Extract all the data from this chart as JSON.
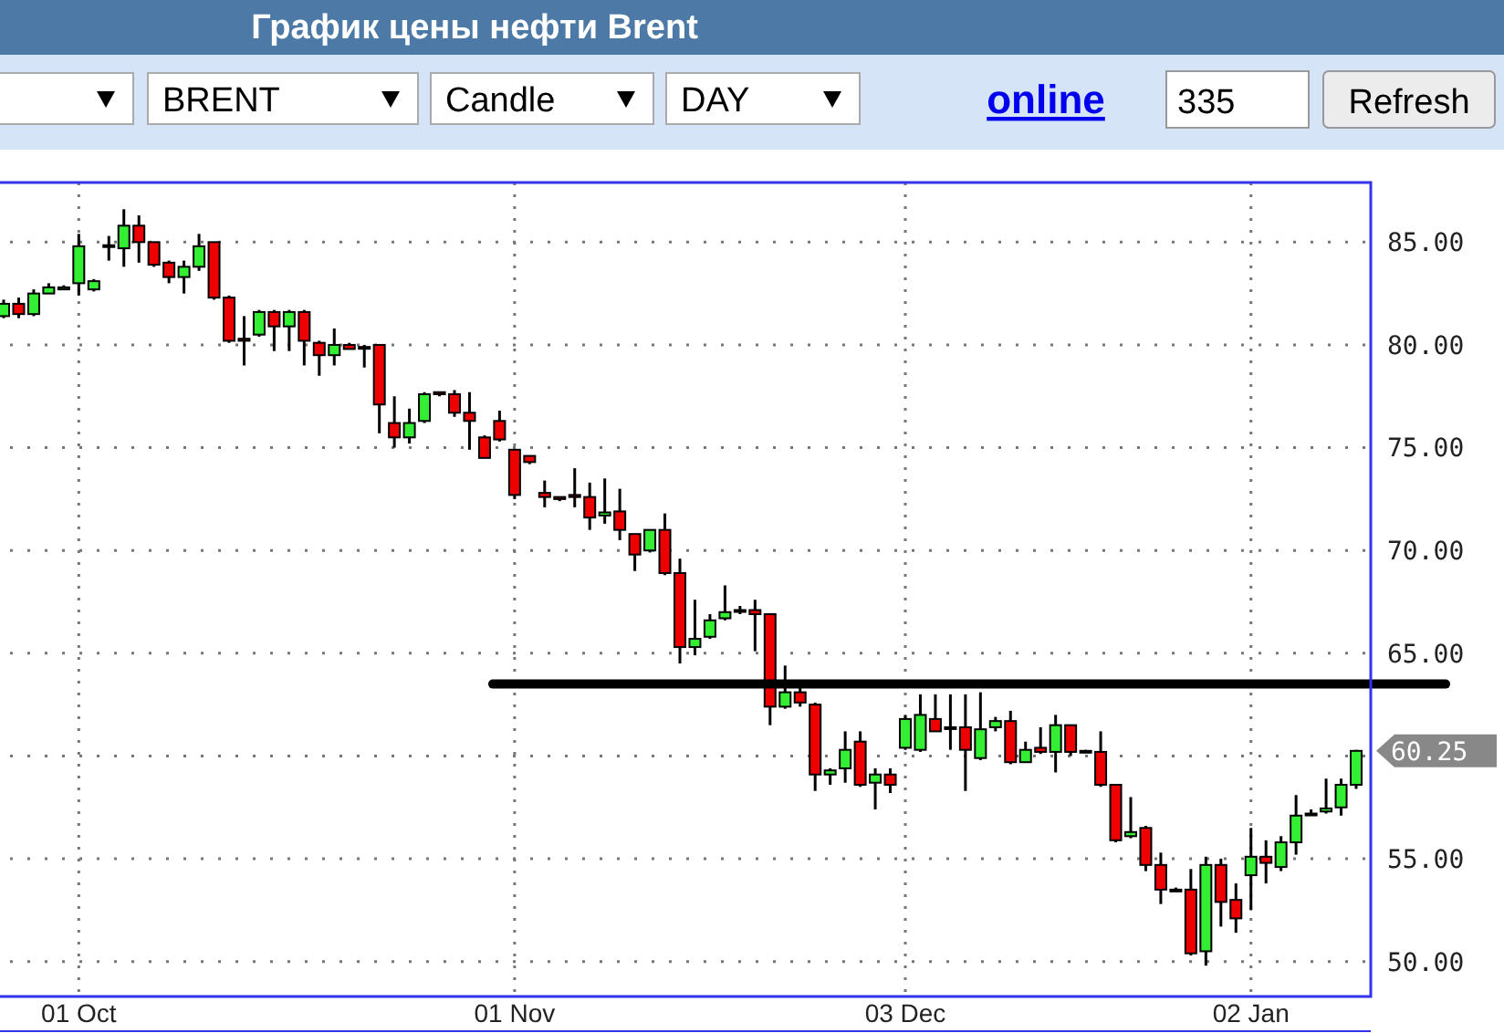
{
  "chart_data": {
    "type": "candlestick",
    "title": "График цены нефти Brent",
    "annotations": [
      "BRENT",
      "Candle",
      "DAY",
      "online",
      "335",
      "Refresh",
      "60.25"
    ],
    "categories": [
      null,
      null,
      null,
      null,
      null,
      "01 Oct",
      null,
      null,
      null,
      null,
      null,
      null,
      null,
      null,
      null,
      null,
      null,
      null,
      null,
      null,
      null,
      null,
      null,
      null,
      null,
      null,
      null,
      null,
      null,
      null,
      null,
      null,
      null,
      null,
      "01 Nov",
      null,
      null,
      null,
      null,
      null,
      null,
      null,
      null,
      null,
      null,
      null,
      null,
      null,
      null,
      null,
      null,
      null,
      null,
      null,
      null,
      null,
      null,
      null,
      null,
      null,
      "03 Dec",
      null,
      null,
      null,
      null,
      null,
      null,
      null,
      null,
      null,
      null,
      null,
      null,
      null,
      null,
      null,
      null,
      null,
      null,
      null,
      null,
      null,
      null,
      "02 Jan",
      null,
      null,
      null,
      null,
      null,
      null,
      null
    ],
    "ohlc": [
      [
        81.4,
        82.2,
        81.3,
        82.0
      ],
      [
        82.0,
        82.3,
        81.3,
        81.5
      ],
      [
        81.5,
        82.7,
        81.4,
        82.5
      ],
      [
        82.5,
        83.0,
        82.5,
        82.8
      ],
      [
        82.7,
        82.9,
        82.7,
        82.8
      ],
      [
        83.0,
        85.4,
        82.4,
        84.8
      ],
      [
        82.7,
        83.2,
        82.6,
        83.1
      ],
      [
        84.8,
        85.3,
        84.1,
        84.85
      ],
      [
        84.7,
        86.6,
        83.8,
        85.8
      ],
      [
        85.8,
        86.3,
        84.0,
        85.0
      ],
      [
        85.0,
        85.0,
        83.8,
        83.9
      ],
      [
        84.0,
        84.1,
        83.0,
        83.3
      ],
      [
        83.3,
        84.1,
        82.5,
        83.8
      ],
      [
        83.8,
        85.4,
        83.6,
        84.8
      ],
      [
        85.0,
        85.0,
        82.2,
        82.3
      ],
      [
        82.3,
        82.4,
        80.1,
        80.2
      ],
      [
        80.3,
        81.4,
        79.0,
        80.2
      ],
      [
        80.5,
        81.7,
        80.4,
        81.6
      ],
      [
        81.6,
        81.7,
        79.7,
        80.9
      ],
      [
        80.9,
        81.7,
        79.7,
        81.6
      ],
      [
        81.6,
        81.7,
        79.0,
        80.2
      ],
      [
        80.1,
        80.2,
        78.5,
        79.5
      ],
      [
        79.5,
        80.8,
        79.0,
        80.0
      ],
      [
        80.0,
        80.1,
        79.8,
        79.8
      ],
      [
        79.9,
        80.0,
        78.9,
        79.9
      ],
      [
        80.0,
        80.0,
        75.7,
        77.1
      ],
      [
        76.2,
        77.5,
        75.0,
        75.5
      ],
      [
        75.5,
        76.9,
        75.2,
        76.2
      ],
      [
        76.3,
        77.7,
        76.2,
        77.6
      ],
      [
        77.7,
        77.7,
        77.5,
        77.6
      ],
      [
        77.6,
        77.8,
        76.5,
        76.7
      ],
      [
        76.7,
        77.7,
        74.9,
        76.3
      ],
      [
        75.5,
        75.6,
        74.5,
        74.5
      ],
      [
        76.3,
        76.8,
        75.3,
        75.4
      ],
      [
        74.9,
        74.9,
        72.5,
        72.7
      ],
      [
        74.6,
        74.6,
        74.2,
        74.3
      ],
      [
        72.8,
        73.4,
        72.1,
        72.6
      ],
      [
        72.6,
        72.6,
        72.4,
        72.5
      ],
      [
        72.7,
        74.0,
        72.1,
        72.6
      ],
      [
        72.6,
        73.3,
        71.0,
        71.6
      ],
      [
        71.7,
        73.5,
        71.3,
        71.85
      ],
      [
        71.9,
        73.0,
        70.5,
        71.0
      ],
      [
        70.8,
        70.8,
        69.0,
        69.8
      ],
      [
        70.0,
        71.0,
        69.9,
        71.0
      ],
      [
        71.0,
        71.8,
        68.8,
        68.9
      ],
      [
        68.9,
        69.6,
        64.5,
        65.3
      ],
      [
        65.3,
        67.6,
        64.9,
        65.7
      ],
      [
        65.8,
        66.9,
        65.7,
        66.6
      ],
      [
        66.7,
        68.3,
        66.6,
        67.0
      ],
      [
        67.1,
        67.3,
        66.9,
        67.1
      ],
      [
        67.1,
        67.6,
        65.1,
        66.9
      ],
      [
        66.9,
        66.9,
        61.5,
        62.4
      ],
      [
        62.4,
        64.4,
        62.3,
        63.1
      ],
      [
        63.1,
        63.7,
        62.4,
        62.6
      ],
      [
        62.5,
        62.6,
        58.3,
        59.1
      ],
      [
        59.1,
        59.4,
        58.6,
        59.3
      ],
      [
        59.4,
        61.2,
        58.7,
        60.3
      ],
      [
        60.7,
        61.2,
        58.5,
        58.6
      ],
      [
        58.7,
        59.4,
        57.4,
        59.1
      ],
      [
        59.1,
        59.4,
        58.2,
        58.6
      ],
      [
        60.4,
        62.0,
        60.3,
        61.8
      ],
      [
        60.3,
        63.0,
        60.2,
        62.0
      ],
      [
        61.8,
        63.0,
        61.2,
        61.2
      ],
      [
        61.4,
        63.0,
        60.3,
        61.35
      ],
      [
        61.4,
        63.0,
        58.3,
        60.3
      ],
      [
        59.9,
        63.1,
        59.8,
        61.3
      ],
      [
        61.4,
        61.9,
        61.2,
        61.7
      ],
      [
        61.7,
        62.2,
        59.6,
        59.7
      ],
      [
        59.7,
        60.7,
        59.7,
        60.3
      ],
      [
        60.4,
        61.4,
        60.1,
        60.2
      ],
      [
        60.2,
        62.0,
        59.2,
        61.5
      ],
      [
        61.5,
        61.5,
        60.0,
        60.2
      ],
      [
        60.25,
        60.3,
        60.2,
        60.2
      ],
      [
        60.2,
        61.2,
        58.5,
        58.6
      ],
      [
        58.6,
        58.6,
        55.8,
        55.9
      ],
      [
        56.1,
        58.0,
        56.0,
        56.3
      ],
      [
        56.5,
        56.6,
        54.4,
        54.7
      ],
      [
        54.7,
        55.3,
        52.8,
        53.5
      ],
      [
        53.5,
        53.6,
        53.4,
        53.5
      ],
      [
        53.5,
        54.5,
        50.3,
        50.4
      ],
      [
        50.5,
        55.1,
        49.8,
        54.7
      ],
      [
        54.7,
        55.0,
        51.7,
        52.9
      ],
      [
        53.0,
        53.8,
        51.4,
        52.1
      ],
      [
        54.2,
        56.5,
        52.5,
        55.1
      ],
      [
        55.1,
        55.9,
        53.8,
        54.8
      ],
      [
        54.6,
        56.1,
        54.4,
        55.8
      ],
      [
        55.8,
        58.1,
        55.2,
        57.1
      ],
      [
        57.2,
        57.4,
        57.1,
        57.2
      ],
      [
        57.3,
        58.9,
        57.2,
        57.45
      ],
      [
        57.5,
        58.9,
        57.1,
        58.6
      ],
      [
        58.6,
        60.3,
        58.4,
        60.25
      ]
    ],
    "colors": [
      "#33ee33",
      "#ee0000",
      "#33ee33",
      "#33ee33",
      "#33ee33",
      "#33ee33",
      "#33ee33",
      "#33ee33",
      "#33ee33",
      "#ee0000",
      "#ee0000",
      "#ee0000",
      "#33ee33",
      "#33ee33",
      "#ee0000",
      "#ee0000",
      "#ee0000",
      "#33ee33",
      "#ee0000",
      "#33ee33",
      "#ee0000",
      "#ee0000",
      "#33ee33",
      "#ee0000",
      "#33ee33",
      "#ee0000",
      "#ee0000",
      "#33ee33",
      "#33ee33",
      "#ee0000",
      "#ee0000",
      "#ee0000",
      "#ee0000",
      "#ee0000",
      "#ee0000",
      "#ee0000",
      "#ee0000",
      "#ee0000",
      "#ee0000",
      "#ee0000",
      "#33ee33",
      "#ee0000",
      "#ee0000",
      "#33ee33",
      "#ee0000",
      "#ee0000",
      "#33ee33",
      "#33ee33",
      "#33ee33",
      "#33ee33",
      "#ee0000",
      "#ee0000",
      "#33ee33",
      "#ee0000",
      "#ee0000",
      "#33ee33",
      "#33ee33",
      "#ee0000",
      "#33ee33",
      "#ee0000",
      "#33ee33",
      "#33ee33",
      "#ee0000",
      "#ee0000",
      "#ee0000",
      "#33ee33",
      "#33ee33",
      "#ee0000",
      "#33ee33",
      "#ee0000",
      "#33ee33",
      "#ee0000",
      "#ee0000",
      "#ee0000",
      "#ee0000",
      "#33ee33",
      "#ee0000",
      "#ee0000",
      "#33ee33",
      "#ee0000",
      "#33ee33",
      "#ee0000",
      "#ee0000",
      "#33ee33",
      "#ee0000",
      "#33ee33",
      "#33ee33",
      "#33ee33",
      "#33ee33",
      "#33ee33",
      "#33ee33"
    ],
    "ylim": [
      48.3,
      87.9
    ],
    "yticks": [
      {
        "value": 50,
        "label": "50.00"
      },
      {
        "value": 55,
        "label": "55.00"
      },
      {
        "value": 60,
        "label": null
      },
      {
        "value": 65,
        "label": "65.00"
      },
      {
        "value": 70,
        "label": "70.00"
      },
      {
        "value": 75,
        "label": "75.00"
      },
      {
        "value": 80,
        "label": "80.00"
      },
      {
        "value": 85,
        "label": "85.00"
      }
    ],
    "ref_lines": [
      {
        "axis": "y",
        "value": 63.5,
        "color": "#000000"
      }
    ],
    "grid": true
  }
}
